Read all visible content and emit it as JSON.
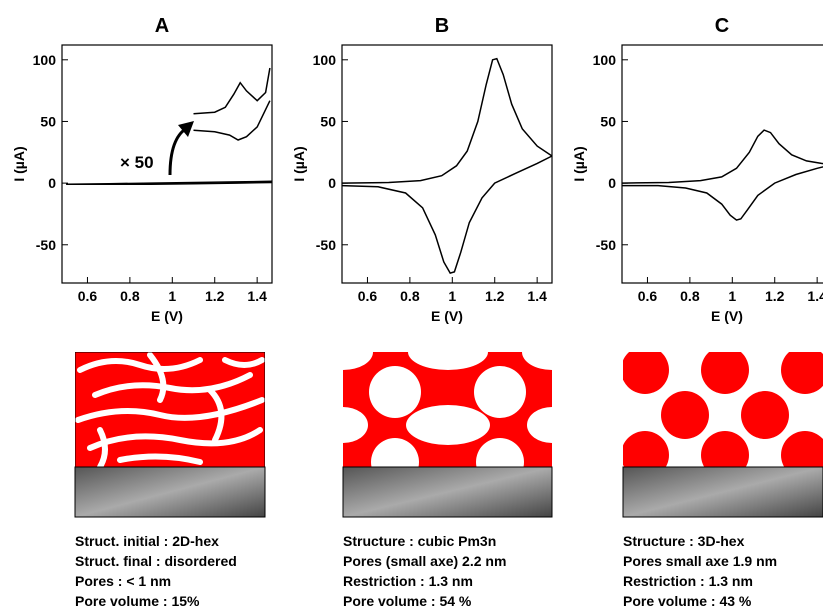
{
  "chart_data": [
    {
      "type": "line",
      "title": "A",
      "xlabel": "E (V)",
      "ylabel": "I (µA)",
      "annotation": "× 50",
      "xlim": [
        0.48,
        1.47
      ],
      "ylim": [
        -81,
        112
      ],
      "xticks": [
        0.6,
        0.8,
        1.0,
        1.2,
        1.4
      ],
      "yticks": [
        -50,
        0,
        50,
        100
      ],
      "series": [
        {
          "color": "#000000",
          "x": [
            0.5,
            0.7,
            0.9,
            1.1,
            1.3,
            1.47
          ],
          "values": [
            -1,
            -0.5,
            0,
            0.5,
            1,
            1.5
          ]
        },
        {
          "color": "#000000",
          "x": [
            1.47,
            1.3,
            1.1,
            0.9,
            0.7,
            0.5
          ],
          "values": [
            0.5,
            0,
            -0.5,
            -1,
            -1,
            -1
          ]
        },
        {
          "color": "#000000",
          "inset": true,
          "x": [
            1.1,
            1.2,
            1.25,
            1.29,
            1.32,
            1.35,
            1.4,
            1.44,
            1.46
          ],
          "values": [
            0.6,
            0.65,
            0.8,
            1.2,
            1.55,
            1.3,
            1.0,
            1.25,
            2.0
          ]
        },
        {
          "color": "#000000",
          "inset": true,
          "x": [
            1.46,
            1.4,
            1.35,
            1.31,
            1.27,
            1.2,
            1.1
          ],
          "values": [
            1.0,
            0.2,
            -0.1,
            -0.2,
            -0.05,
            0.05,
            0.1
          ]
        }
      ]
    },
    {
      "type": "line",
      "title": "B",
      "xlabel": "E (V)",
      "ylabel": "I (µA)",
      "xlim": [
        0.48,
        1.47
      ],
      "ylim": [
        -81,
        112
      ],
      "xticks": [
        0.6,
        0.8,
        1.0,
        1.2,
        1.4
      ],
      "yticks": [
        -50,
        0,
        50,
        100
      ],
      "series": [
        {
          "color": "#000000",
          "x": [
            0.48,
            0.7,
            0.85,
            0.95,
            1.02,
            1.07,
            1.12,
            1.16,
            1.19,
            1.21,
            1.24,
            1.28,
            1.33,
            1.4,
            1.47
          ],
          "values": [
            0,
            0.5,
            2,
            6,
            14,
            26,
            50,
            80,
            100,
            101,
            88,
            64,
            44,
            30,
            22
          ]
        },
        {
          "color": "#000000",
          "x": [
            1.47,
            1.4,
            1.3,
            1.2,
            1.14,
            1.08,
            1.04,
            1.01,
            0.99,
            0.96,
            0.92,
            0.86,
            0.78,
            0.65,
            0.48
          ],
          "values": [
            22,
            16,
            8,
            0,
            -12,
            -32,
            -56,
            -72,
            -73,
            -64,
            -42,
            -20,
            -8,
            -3,
            -2
          ]
        }
      ]
    },
    {
      "type": "line",
      "title": "C",
      "xlabel": "E (V)",
      "ylabel": "I (µA)",
      "xlim": [
        0.48,
        1.47
      ],
      "ylim": [
        -81,
        112
      ],
      "xticks": [
        0.6,
        0.8,
        1.0,
        1.2,
        1.4
      ],
      "yticks": [
        -50,
        0,
        50,
        100
      ],
      "series": [
        {
          "color": "#000000",
          "x": [
            0.48,
            0.7,
            0.85,
            0.95,
            1.02,
            1.08,
            1.12,
            1.15,
            1.18,
            1.22,
            1.28,
            1.35,
            1.42,
            1.47
          ],
          "values": [
            0,
            0.5,
            2,
            5,
            12,
            25,
            38,
            43,
            41,
            32,
            23,
            18,
            16,
            15
          ]
        },
        {
          "color": "#000000",
          "x": [
            1.47,
            1.4,
            1.3,
            1.2,
            1.12,
            1.07,
            1.04,
            1.02,
            0.99,
            0.95,
            0.88,
            0.78,
            0.65,
            0.48
          ],
          "values": [
            15,
            12,
            7,
            0,
            -10,
            -22,
            -29,
            -30,
            -26,
            -17,
            -8,
            -4,
            -2,
            -2
          ]
        }
      ]
    }
  ],
  "captions": [
    [
      "Struct. initial : 2D-hex",
      "Struct. final : disordered",
      "Pores : < 1 nm",
      "Pore volume : 15%"
    ],
    [
      "Structure : cubic Pm3n",
      "Pores (small axe) 2.2 nm",
      "Restriction : 1.3 nm",
      "Pore volume : 54 %"
    ],
    [
      "Structure : 3D-hex",
      "Pores small axe 1.9 nm",
      "Restriction : 1.3 nm",
      "Pore volume : 43 %"
    ]
  ]
}
